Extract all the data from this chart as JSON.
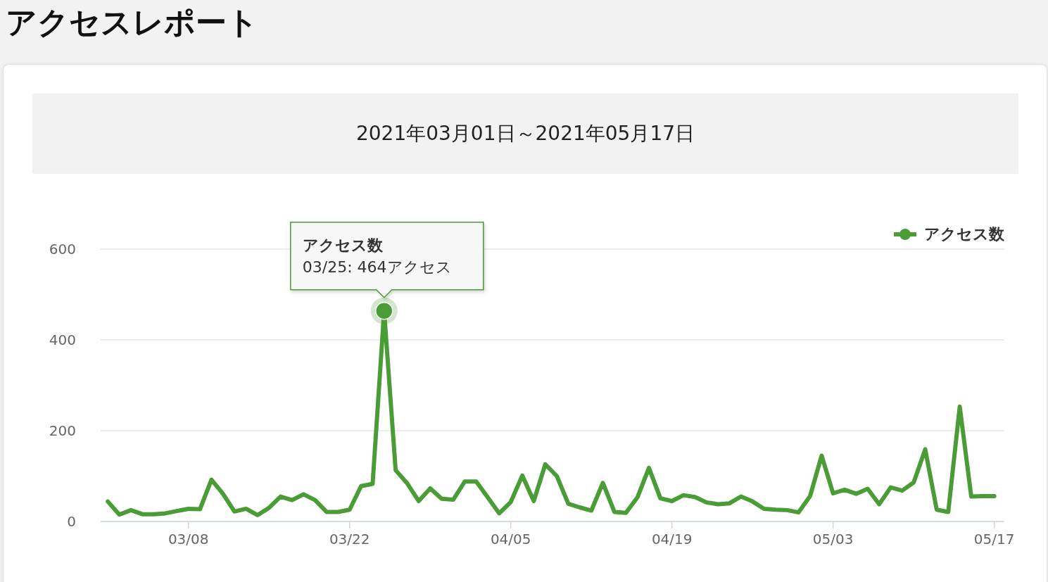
{
  "chart_data": {
    "type": "line",
    "title": "アクセスレポート",
    "subtitle": "2021年03月01日～2021年05月17日",
    "x": [
      "2021-03-01",
      "2021-03-02",
      "2021-03-03",
      "2021-03-04",
      "2021-03-05",
      "2021-03-06",
      "2021-03-07",
      "2021-03-08",
      "2021-03-09",
      "2021-03-10",
      "2021-03-11",
      "2021-03-12",
      "2021-03-13",
      "2021-03-14",
      "2021-03-15",
      "2021-03-16",
      "2021-03-17",
      "2021-03-18",
      "2021-03-19",
      "2021-03-20",
      "2021-03-21",
      "2021-03-22",
      "2021-03-23",
      "2021-03-24",
      "2021-03-25",
      "2021-03-26",
      "2021-03-27",
      "2021-03-28",
      "2021-03-29",
      "2021-03-30",
      "2021-03-31",
      "2021-04-01",
      "2021-04-02",
      "2021-04-03",
      "2021-04-04",
      "2021-04-05",
      "2021-04-06",
      "2021-04-07",
      "2021-04-08",
      "2021-04-09",
      "2021-04-10",
      "2021-04-11",
      "2021-04-12",
      "2021-04-13",
      "2021-04-14",
      "2021-04-15",
      "2021-04-16",
      "2021-04-17",
      "2021-04-18",
      "2021-04-19",
      "2021-04-20",
      "2021-04-21",
      "2021-04-22",
      "2021-04-23",
      "2021-04-24",
      "2021-04-25",
      "2021-04-26",
      "2021-04-27",
      "2021-04-28",
      "2021-04-29",
      "2021-04-30",
      "2021-05-01",
      "2021-05-02",
      "2021-05-03",
      "2021-05-04",
      "2021-05-05",
      "2021-05-06",
      "2021-05-07",
      "2021-05-08",
      "2021-05-09",
      "2021-05-10",
      "2021-05-11",
      "2021-05-12",
      "2021-05-13",
      "2021-05-14",
      "2021-05-15",
      "2021-05-16",
      "2021-05-17"
    ],
    "series": [
      {
        "name": "アクセス数",
        "color": "#4a9d36",
        "values": [
          44,
          15,
          25,
          16,
          16,
          18,
          23,
          28,
          27,
          92,
          61,
          22,
          28,
          14,
          30,
          55,
          47,
          60,
          47,
          21,
          21,
          26,
          78,
          83,
          464,
          113,
          84,
          45,
          73,
          50,
          48,
          88,
          88,
          53,
          18,
          43,
          101,
          45,
          126,
          100,
          39,
          31,
          24,
          85,
          21,
          19,
          53,
          118,
          51,
          45,
          58,
          54,
          42,
          38,
          40,
          55,
          44,
          28,
          26,
          25,
          20,
          56,
          145,
          62,
          70,
          61,
          72,
          38,
          75,
          68,
          86,
          159,
          26,
          21,
          253,
          55,
          56,
          56
        ]
      }
    ],
    "xlim": [
      "2021-02-28T09:00",
      "2021-05-17T21:00"
    ],
    "xticks": [
      {
        "value": "2021-03-08",
        "label": "03/08"
      },
      {
        "value": "2021-03-22",
        "label": "03/22"
      },
      {
        "value": "2021-04-05",
        "label": "04/05"
      },
      {
        "value": "2021-04-19",
        "label": "04/19"
      },
      {
        "value": "2021-05-03",
        "label": "05/03"
      },
      {
        "value": "2021-05-17",
        "label": "05/17"
      }
    ],
    "ylim": [
      0,
      600
    ],
    "yticks": [
      0,
      200,
      400,
      600
    ],
    "annotations": [
      {
        "text": "アクセス数\n03/25: 464アクセス",
        "x": "2021-03-25",
        "y": 464
      }
    ],
    "grid": "y",
    "legend": "top right",
    "marker": "none",
    "line_style": "solid"
  }
}
